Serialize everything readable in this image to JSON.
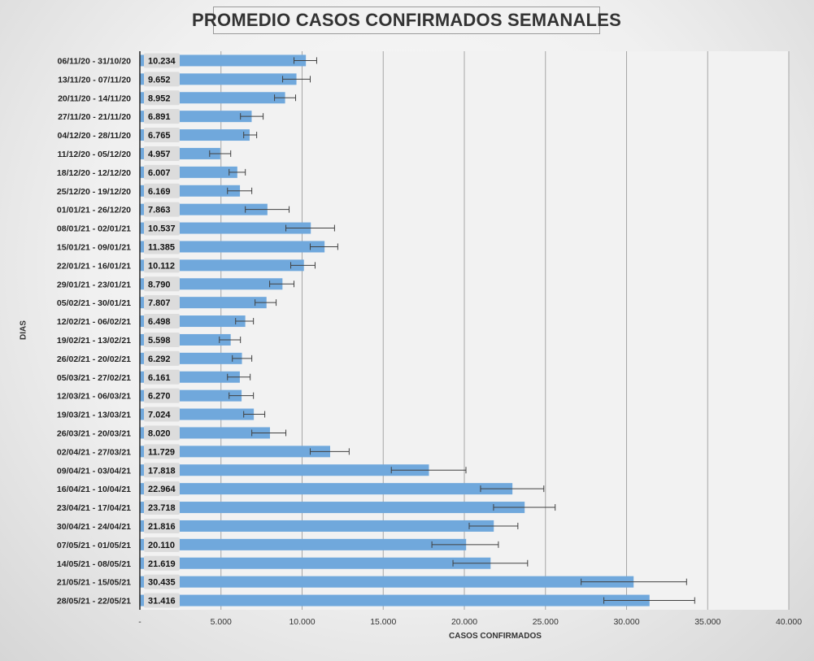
{
  "chart_data": {
    "type": "bar",
    "orientation": "horizontal",
    "title": "PROMEDIO CASOS CONFIRMADOS SEMANALES",
    "xlabel": "CASOS CONFIRMADOS",
    "ylabel": "DIAS",
    "xlim": [
      0,
      40000
    ],
    "x_ticks": [
      0,
      5000,
      10000,
      15000,
      20000,
      25000,
      30000,
      35000,
      40000
    ],
    "x_tick_labels": [
      "-",
      "5.000",
      "10.000",
      "15.000",
      "20.000",
      "25.000",
      "30.000",
      "35.000",
      "40.000"
    ],
    "grid": "vertical",
    "bar_color": "#70a8dc",
    "error_bars": true,
    "categories": [
      "06/11/20 - 31/10/20",
      "13/11/20 - 07/11/20",
      "20/11/20 - 14/11/20",
      "27/11/20 - 21/11/20",
      "04/12/20 - 28/11/20",
      "11/12/20 - 05/12/20",
      "18/12/20 - 12/12/20",
      "25/12/20 - 19/12/20",
      "01/01/21 - 26/12/20",
      "08/01/21 - 02/01/21",
      "15/01/21 - 09/01/21",
      "22/01/21 - 16/01/21",
      "29/01/21 - 23/01/21",
      "05/02/21 - 30/01/21",
      "12/02/21 - 06/02/21",
      "19/02/21 - 13/02/21",
      "26/02/21 - 20/02/21",
      "05/03/21 - 27/02/21",
      "12/03/21 - 06/03/21",
      "19/03/21 - 13/03/21",
      "26/03/21 - 20/03/21",
      "02/04/21 - 27/03/21",
      "09/04/21 - 03/04/21",
      "16/04/21 - 10/04/21",
      "23/04/21 - 17/04/21",
      "30/04/21 - 24/04/21",
      "07/05/21 - 01/05/21",
      "14/05/21 - 08/05/21",
      "21/05/21 - 15/05/21",
      "28/05/21 - 22/05/21"
    ],
    "values": [
      10234,
      9652,
      8952,
      6891,
      6765,
      4957,
      6007,
      6169,
      7863,
      10537,
      11385,
      10112,
      8790,
      7807,
      6498,
      5598,
      6292,
      6161,
      6270,
      7024,
      8020,
      11729,
      17818,
      22964,
      23718,
      21816,
      20110,
      21619,
      30435,
      31416
    ],
    "value_labels": [
      "10.234",
      "9.652",
      "8.952",
      "6.891",
      "6.765",
      "4.957",
      "6.007",
      "6.169",
      "7.863",
      "10.537",
      "11.385",
      "10.112",
      "8.790",
      "7.807",
      "6.498",
      "5.598",
      "6.292",
      "6.161",
      "6.270",
      "7.024",
      "8.020",
      "11.729",
      "17.818",
      "22.964",
      "23.718",
      "21.816",
      "20.110",
      "21.619",
      "30.435",
      "31.416"
    ],
    "error_low": [
      9500,
      8800,
      8300,
      6200,
      6400,
      4300,
      5500,
      5400,
      6500,
      9000,
      10500,
      9300,
      8000,
      7100,
      5900,
      4900,
      5700,
      5400,
      5500,
      6400,
      6900,
      10500,
      15500,
      21000,
      21800,
      20300,
      18000,
      19300,
      27200,
      28600
    ],
    "error_high": [
      10900,
      10500,
      9600,
      7600,
      7200,
      5600,
      6500,
      6900,
      9200,
      12000,
      12200,
      10800,
      9500,
      8400,
      7000,
      6200,
      6900,
      6800,
      7000,
      7700,
      9000,
      12900,
      20100,
      24900,
      25600,
      23300,
      22100,
      23900,
      33700,
      34200
    ]
  }
}
